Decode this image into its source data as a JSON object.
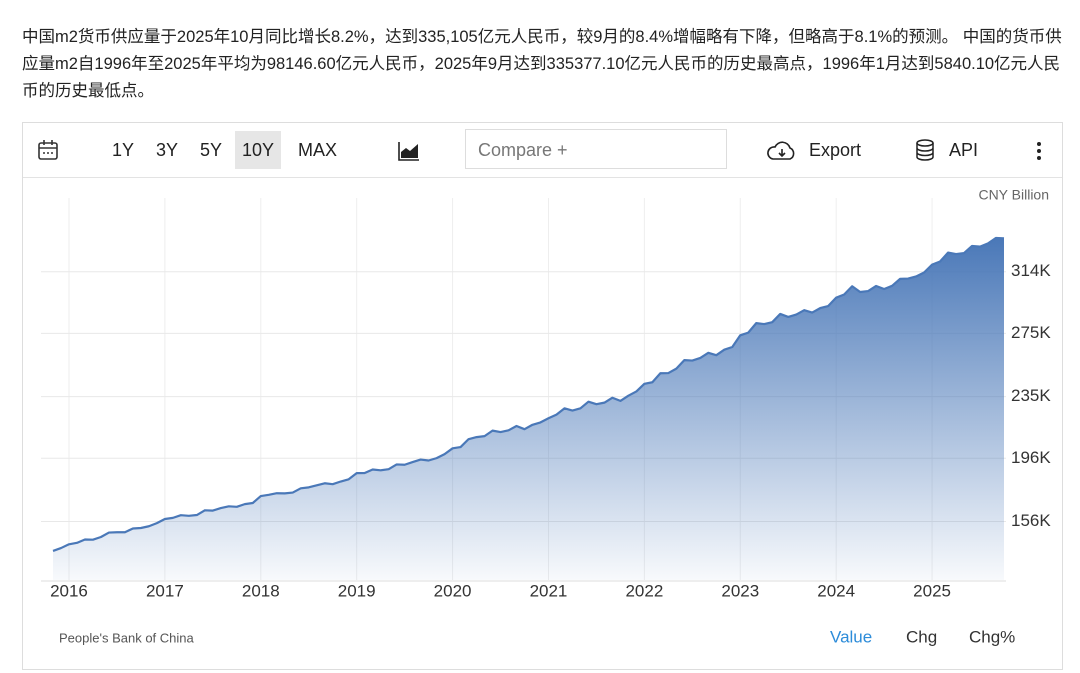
{
  "description": "中国m2货币供应量于2025年10月同比增长8.2%，达到335,105亿元人民币，较9月的8.4%增幅略有下降，但略高于8.1%的预测。 中国的货币供应量m2自1996年至2025年平均为98146.60亿元人民币，2025年9月达到335377.10亿元人民币的历史最高点，1996年1月达到5840.10亿元人民币的历史最低点。",
  "toolbar": {
    "ranges": [
      "1Y",
      "3Y",
      "5Y",
      "10Y",
      "MAX"
    ],
    "active_range": "10Y",
    "compare": "Compare +",
    "export": "Export",
    "api": "API"
  },
  "footer": {
    "source": "People's Bank of China",
    "tabs": [
      "Value",
      "Chg",
      "Chg%"
    ],
    "active_tab": "Value"
  },
  "chart_data": {
    "type": "area",
    "unit": "CNY Billion",
    "color": "#4a78b8",
    "grid": true,
    "categories": [
      null,
      null,
      "2016",
      null,
      null,
      null,
      null,
      null,
      null,
      null,
      null,
      null,
      null,
      null,
      "2017",
      null,
      null,
      null,
      null,
      null,
      null,
      null,
      null,
      null,
      null,
      null,
      "2018",
      null,
      null,
      null,
      null,
      null,
      null,
      null,
      null,
      null,
      null,
      null,
      "2019",
      null,
      null,
      null,
      null,
      null,
      null,
      null,
      null,
      null,
      null,
      null,
      "2020",
      null,
      null,
      null,
      null,
      null,
      null,
      null,
      null,
      null,
      null,
      null,
      "2021",
      null,
      null,
      null,
      null,
      null,
      null,
      null,
      null,
      null,
      null,
      null,
      "2022",
      null,
      null,
      null,
      null,
      null,
      null,
      null,
      null,
      null,
      null,
      null,
      "2023",
      null,
      null,
      null,
      null,
      null,
      null,
      null,
      null,
      null,
      null,
      null,
      "2024",
      null,
      null,
      null,
      null,
      null,
      null,
      null,
      null,
      null,
      null,
      null,
      "2025",
      null,
      null,
      null,
      null,
      null,
      null,
      null,
      null,
      null
    ],
    "values": [
      137400,
      139200,
      141600,
      142500,
      144600,
      144500,
      146200,
      149000,
      149200,
      149200,
      151600,
      151900,
      153000,
      155000,
      157600,
      158300,
      160000,
      159600,
      160100,
      163100,
      162900,
      164500,
      165600,
      165300,
      167000,
      167700,
      172100,
      172900,
      173900,
      173800,
      174300,
      177000,
      177600,
      178900,
      180200,
      179600,
      181300,
      182700,
      186600,
      186700,
      188900,
      188400,
      189100,
      192100,
      191900,
      193600,
      195200,
      194600,
      196100,
      198600,
      202300,
      203100,
      208100,
      209400,
      210000,
      213500,
      212600,
      213700,
      216400,
      214400,
      217200,
      218700,
      221300,
      223600,
      227600,
      226200,
      227600,
      231800,
      230200,
      231200,
      234300,
      232300,
      235600,
      238300,
      243100,
      244100,
      249800,
      249900,
      252700,
      258100,
      257800,
      259500,
      262700,
      261200,
      264700,
      266400,
      273800,
      275500,
      281500,
      280900,
      282100,
      287300,
      285400,
      286900,
      289700,
      288200,
      291000,
      292300,
      297600,
      299600,
      304800,
      301200,
      301800,
      305000,
      303100,
      305100,
      309500,
      309700,
      311000,
      313500,
      318500,
      320500,
      326100,
      325200,
      325800,
      330300,
      329900,
      331900,
      335400,
      335100
    ],
    "ylim": [
      119000,
      348000
    ],
    "yticks": [
      {
        "value": 156000,
        "label": "156K"
      },
      {
        "value": 196000,
        "label": "196K"
      },
      {
        "value": 235000,
        "label": "235K"
      },
      {
        "value": 275000,
        "label": "275K"
      },
      {
        "value": 314000,
        "label": "314K"
      }
    ]
  }
}
